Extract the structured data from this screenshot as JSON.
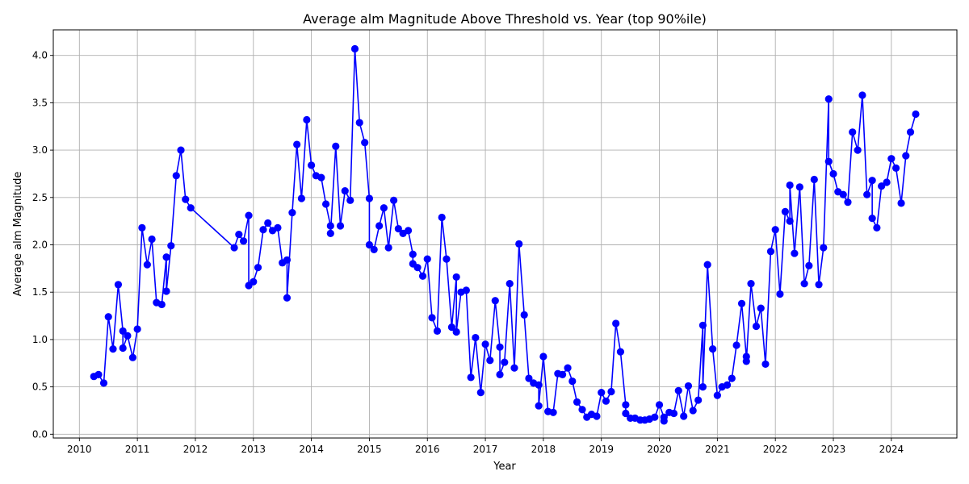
{
  "chart_data": {
    "type": "line",
    "title": "Average alm Magnitude Above Threshold vs. Year (top 90%ile)",
    "xlabel": "Year",
    "ylabel": "Average alm Magnitude",
    "xlim": [
      2009.55,
      2025.13
    ],
    "ylim": [
      -0.04,
      4.27
    ],
    "x_ticks": [
      2010,
      2011,
      2012,
      2013,
      2014,
      2015,
      2016,
      2017,
      2018,
      2019,
      2020,
      2021,
      2022,
      2023,
      2024
    ],
    "x_tick_labels": [
      "2010",
      "2011",
      "2012",
      "2013",
      "2014",
      "2015",
      "2016",
      "2017",
      "2018",
      "2019",
      "2020",
      "2021",
      "2022",
      "2023",
      "2024"
    ],
    "y_ticks": [
      0.0,
      0.5,
      1.0,
      1.5,
      2.0,
      2.5,
      3.0,
      3.5,
      4.0
    ],
    "y_tick_labels": [
      "0.0",
      "0.5",
      "1.0",
      "1.5",
      "2.0",
      "2.5",
      "3.0",
      "3.5",
      "4.0"
    ],
    "grid": true,
    "color": "#0000ff",
    "marker": "circle",
    "x": [
      2010.25,
      2010.33,
      2010.42,
      2010.5,
      2010.58,
      2010.67,
      2010.75,
      2010.75,
      2010.83,
      2010.92,
      2011.0,
      2011.08,
      2011.17,
      2011.25,
      2011.33,
      2011.42,
      2011.5,
      2011.5,
      2011.58,
      2011.67,
      2011.75,
      2011.83,
      2011.92,
      2012.67,
      2012.75,
      2012.83,
      2012.92,
      2012.92,
      2013.0,
      2013.08,
      2013.17,
      2013.25,
      2013.33,
      2013.42,
      2013.5,
      2013.58,
      2013.58,
      2013.67,
      2013.75,
      2013.83,
      2013.92,
      2014.0,
      2014.08,
      2014.17,
      2014.25,
      2014.33,
      2014.33,
      2014.42,
      2014.5,
      2014.58,
      2014.67,
      2014.75,
      2014.83,
      2014.92,
      2015.0,
      2015.0,
      2015.08,
      2015.17,
      2015.25,
      2015.33,
      2015.42,
      2015.5,
      2015.58,
      2015.67,
      2015.75,
      2015.75,
      2015.83,
      2015.92,
      2016.0,
      2016.08,
      2016.17,
      2016.25,
      2016.33,
      2016.42,
      2016.5,
      2016.5,
      2016.58,
      2016.67,
      2016.75,
      2016.83,
      2016.92,
      2017.0,
      2017.08,
      2017.17,
      2017.25,
      2017.25,
      2017.33,
      2017.42,
      2017.5,
      2017.58,
      2017.67,
      2017.75,
      2017.83,
      2017.92,
      2017.92,
      2018.0,
      2018.08,
      2018.17,
      2018.25,
      2018.33,
      2018.42,
      2018.5,
      2018.58,
      2018.67,
      2018.75,
      2018.83,
      2018.92,
      2019.0,
      2019.08,
      2019.17,
      2019.25,
      2019.33,
      2019.42,
      2019.42,
      2019.5,
      2019.58,
      2019.67,
      2019.75,
      2019.83,
      2019.92,
      2020.0,
      2020.08,
      2020.08,
      2020.17,
      2020.25,
      2020.33,
      2020.42,
      2020.5,
      2020.58,
      2020.67,
      2020.75,
      2020.75,
      2020.83,
      2020.92,
      2021.0,
      2021.08,
      2021.17,
      2021.25,
      2021.33,
      2021.42,
      2021.5,
      2021.5,
      2021.58,
      2021.67,
      2021.75,
      2021.83,
      2021.92,
      2022.0,
      2022.08,
      2022.17,
      2022.25,
      2022.25,
      2022.33,
      2022.42,
      2022.5,
      2022.58,
      2022.67,
      2022.75,
      2022.83,
      2022.92,
      2022.92,
      2023.0,
      2023.08,
      2023.17,
      2023.25,
      2023.33,
      2023.42,
      2023.5,
      2023.58,
      2023.67,
      2023.67,
      2023.75,
      2023.83,
      2023.92,
      2024.0,
      2024.08,
      2024.17,
      2024.25,
      2024.33,
      2024.42
    ],
    "y": [
      0.61,
      0.63,
      0.54,
      1.24,
      0.9,
      1.58,
      1.09,
      0.91,
      1.04,
      0.81,
      1.11,
      2.18,
      1.79,
      2.06,
      1.39,
      1.37,
      1.87,
      1.51,
      1.99,
      2.73,
      3.0,
      2.48,
      2.39,
      1.97,
      2.11,
      2.04,
      2.31,
      1.57,
      1.61,
      1.76,
      2.16,
      2.23,
      2.15,
      2.18,
      1.81,
      1.84,
      1.44,
      2.34,
      3.06,
      2.49,
      3.32,
      2.84,
      2.73,
      2.71,
      2.43,
      2.2,
      2.12,
      3.04,
      2.2,
      2.57,
      2.47,
      4.07,
      3.29,
      3.08,
      2.49,
      2.0,
      1.95,
      2.2,
      2.39,
      1.97,
      2.47,
      2.17,
      2.12,
      2.15,
      1.9,
      1.8,
      1.76,
      1.67,
      1.85,
      1.23,
      1.09,
      2.29,
      1.85,
      1.13,
      1.66,
      1.08,
      1.5,
      1.52,
      0.6,
      1.02,
      0.44,
      0.95,
      0.78,
      1.41,
      0.92,
      0.63,
      0.76,
      1.59,
      0.7,
      2.01,
      1.26,
      0.59,
      0.54,
      0.52,
      0.3,
      0.82,
      0.24,
      0.23,
      0.64,
      0.63,
      0.7,
      0.56,
      0.34,
      0.26,
      0.18,
      0.21,
      0.19,
      0.44,
      0.35,
      0.45,
      1.17,
      0.87,
      0.31,
      0.22,
      0.17,
      0.17,
      0.15,
      0.15,
      0.16,
      0.18,
      0.31,
      0.18,
      0.14,
      0.23,
      0.22,
      0.46,
      0.19,
      0.51,
      0.25,
      0.36,
      1.15,
      0.5,
      1.79,
      0.9,
      0.41,
      0.5,
      0.52,
      0.59,
      0.94,
      1.38,
      0.82,
      0.77,
      1.59,
      1.14,
      1.33,
      0.74,
      1.93,
      2.16,
      1.48,
      2.35,
      2.25,
      2.63,
      1.91,
      2.61,
      1.59,
      1.78,
      2.69,
      1.58,
      1.97,
      3.54,
      2.88,
      2.75,
      2.56,
      2.53,
      2.45,
      3.19,
      3.0,
      3.58,
      2.53,
      2.68,
      2.28,
      2.18,
      2.62,
      2.66,
      2.91,
      2.81,
      2.44,
      2.94,
      3.19,
      3.38
    ]
  }
}
